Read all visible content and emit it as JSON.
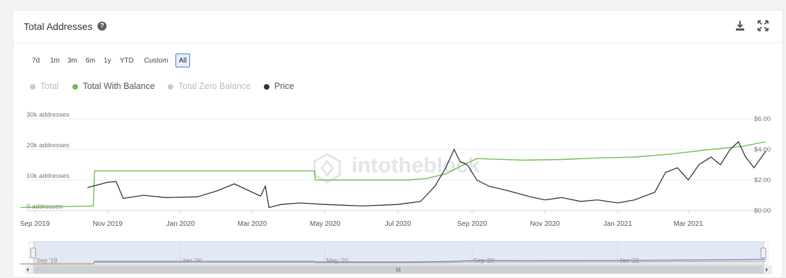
{
  "header": {
    "title": "Total Addresses"
  },
  "icons": {
    "help": "help-icon",
    "download": "download-icon",
    "expand": "expand-icon"
  },
  "ranges": [
    {
      "label": "7d",
      "active": false
    },
    {
      "label": "1m",
      "active": false
    },
    {
      "label": "3m",
      "active": false
    },
    {
      "label": "6m",
      "active": false
    },
    {
      "label": "1y",
      "active": false
    },
    {
      "label": "YTD",
      "active": false
    },
    {
      "label": "Custom",
      "active": false
    },
    {
      "label": "All",
      "active": true
    }
  ],
  "legend": [
    {
      "label": "Total",
      "color": "#c9c9c9",
      "enabled": false
    },
    {
      "label": "Total With Balance",
      "color": "#6abf4b",
      "enabled": true
    },
    {
      "label": "Total Zero Balance",
      "color": "#c9c9c9",
      "enabled": false
    },
    {
      "label": "Price",
      "color": "#333333",
      "enabled": true
    }
  ],
  "watermark": "intotheblock",
  "navigator": {
    "labels": [
      "Sep '19",
      "Jan '20",
      "May '20",
      "Sep '20",
      "Jan '21"
    ],
    "scroll_grip": "III"
  },
  "chart_data": {
    "type": "line",
    "x_tick_labels": [
      "Sep 2019",
      "Nov 2019",
      "Jan 2020",
      "Mar 2020",
      "May 2020",
      "Jul 2020",
      "Sep 2020",
      "Nov 2020",
      "Jan 2021",
      "Mar 2021"
    ],
    "y_left": {
      "ticks": [
        "0 addresses",
        "10k addresses",
        "20k addresses",
        "30k addresses"
      ],
      "range": [
        0,
        30000
      ]
    },
    "y_right": {
      "ticks": [
        "$0.00",
        "$2.00",
        "$4.00",
        "$6.00"
      ],
      "range": [
        0,
        6
      ]
    },
    "grid": true,
    "legend_position": "top-left",
    "series": [
      {
        "name": "Total With Balance",
        "axis": "left",
        "color": "#6abf4b",
        "points": [
          [
            "2019-08-20",
            1000
          ],
          [
            "2019-10-20",
            1500
          ],
          [
            "2019-10-21",
            13000
          ],
          [
            "2020-04-22",
            13000
          ],
          [
            "2020-04-23",
            10000
          ],
          [
            "2020-07-10",
            10000
          ],
          [
            "2020-07-25",
            10500
          ],
          [
            "2020-08-10",
            12000
          ],
          [
            "2020-08-25",
            15000
          ],
          [
            "2020-09-05",
            17000
          ],
          [
            "2020-09-20",
            16800
          ],
          [
            "2020-10-15",
            16500
          ],
          [
            "2020-11-15",
            16700
          ],
          [
            "2020-12-15",
            17200
          ],
          [
            "2021-01-15",
            17500
          ],
          [
            "2021-02-15",
            18500
          ],
          [
            "2021-03-15",
            19800
          ],
          [
            "2021-04-15",
            21000
          ],
          [
            "2021-05-05",
            22500
          ]
        ]
      },
      {
        "name": "Price",
        "axis": "right",
        "color": "#333333",
        "points": [
          [
            "2019-10-15",
            1.5
          ],
          [
            "2019-11-01",
            1.85
          ],
          [
            "2019-11-08",
            1.9
          ],
          [
            "2019-11-14",
            0.8
          ],
          [
            "2019-12-01",
            1.0
          ],
          [
            "2019-12-20",
            0.85
          ],
          [
            "2020-01-15",
            0.9
          ],
          [
            "2020-02-01",
            1.3
          ],
          [
            "2020-02-15",
            1.75
          ],
          [
            "2020-03-01",
            1.2
          ],
          [
            "2020-03-08",
            0.95
          ],
          [
            "2020-03-12",
            1.6
          ],
          [
            "2020-03-15",
            0.2
          ],
          [
            "2020-03-25",
            0.4
          ],
          [
            "2020-04-10",
            0.5
          ],
          [
            "2020-05-01",
            0.4
          ],
          [
            "2020-06-01",
            0.3
          ],
          [
            "2020-07-01",
            0.4
          ],
          [
            "2020-07-20",
            0.6
          ],
          [
            "2020-08-01",
            1.6
          ],
          [
            "2020-08-10",
            2.8
          ],
          [
            "2020-08-17",
            4.0
          ],
          [
            "2020-08-22",
            3.2
          ],
          [
            "2020-08-28",
            3.0
          ],
          [
            "2020-09-05",
            2.0
          ],
          [
            "2020-09-15",
            1.6
          ],
          [
            "2020-10-01",
            1.3
          ],
          [
            "2020-10-20",
            0.9
          ],
          [
            "2020-11-01",
            0.7
          ],
          [
            "2020-11-15",
            0.85
          ],
          [
            "2020-12-01",
            0.6
          ],
          [
            "2020-12-15",
            0.7
          ],
          [
            "2021-01-01",
            0.5
          ],
          [
            "2021-01-15",
            0.7
          ],
          [
            "2021-02-01",
            1.2
          ],
          [
            "2021-02-10",
            2.5
          ],
          [
            "2021-02-20",
            2.8
          ],
          [
            "2021-03-01",
            2.0
          ],
          [
            "2021-03-10",
            3.0
          ],
          [
            "2021-03-20",
            3.5
          ],
          [
            "2021-03-28",
            3.0
          ],
          [
            "2021-04-05",
            4.0
          ],
          [
            "2021-04-12",
            4.5
          ],
          [
            "2021-04-18",
            3.5
          ],
          [
            "2021-04-25",
            2.8
          ],
          [
            "2021-05-05",
            3.9
          ]
        ]
      }
    ]
  }
}
